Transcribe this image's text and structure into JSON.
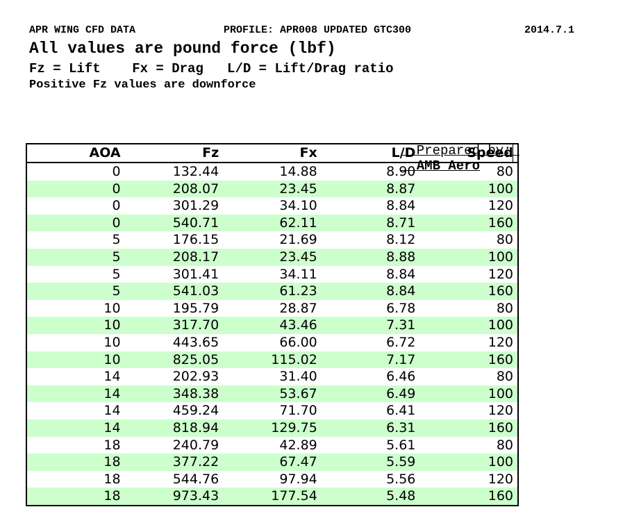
{
  "header": {
    "title": "APR WING CFD DATA",
    "profile": "PROFILE: APR008 UPDATED GTC300",
    "version": "2014.7.1",
    "subtitle": "All values are pound force (lbf)",
    "legend": "Fz = Lift    Fx = Drag   L/D = Lift/Drag ratio",
    "note": "Positive Fz values are downforce"
  },
  "prepared_by": {
    "label": "Prepared by: ",
    "value": "AMB Aero"
  },
  "table": {
    "columns": [
      "AOA",
      "Fz",
      "Fx",
      "L/D",
      "Speed"
    ],
    "rows": [
      [
        "0",
        "132.44",
        "14.88",
        "8.90",
        "80"
      ],
      [
        "0",
        "208.07",
        "23.45",
        "8.87",
        "100"
      ],
      [
        "0",
        "301.29",
        "34.10",
        "8.84",
        "120"
      ],
      [
        "0",
        "540.71",
        "62.11",
        "8.71",
        "160"
      ],
      [
        "5",
        "176.15",
        "21.69",
        "8.12",
        "80"
      ],
      [
        "5",
        "208.17",
        "23.45",
        "8.88",
        "100"
      ],
      [
        "5",
        "301.41",
        "34.11",
        "8.84",
        "120"
      ],
      [
        "5",
        "541.03",
        "61.23",
        "8.84",
        "160"
      ],
      [
        "10",
        "195.79",
        "28.87",
        "6.78",
        "80"
      ],
      [
        "10",
        "317.70",
        "43.46",
        "7.31",
        "100"
      ],
      [
        "10",
        "443.65",
        "66.00",
        "6.72",
        "120"
      ],
      [
        "10",
        "825.05",
        "115.02",
        "7.17",
        "160"
      ],
      [
        "14",
        "202.93",
        "31.40",
        "6.46",
        "80"
      ],
      [
        "14",
        "348.38",
        "53.67",
        "6.49",
        "100"
      ],
      [
        "14",
        "459.24",
        "71.70",
        "6.41",
        "120"
      ],
      [
        "14",
        "818.94",
        "129.75",
        "6.31",
        "160"
      ],
      [
        "18",
        "240.79",
        "42.89",
        "5.61",
        "80"
      ],
      [
        "18",
        "377.22",
        "67.47",
        "5.59",
        "100"
      ],
      [
        "18",
        "544.76",
        "97.94",
        "5.56",
        "120"
      ],
      [
        "18",
        "973.43",
        "177.54",
        "5.48",
        "160"
      ]
    ]
  },
  "colors": {
    "row_alt_green": "#CCFFCC",
    "border": "#000000",
    "text": "#000000",
    "background": "#FFFFFF"
  }
}
